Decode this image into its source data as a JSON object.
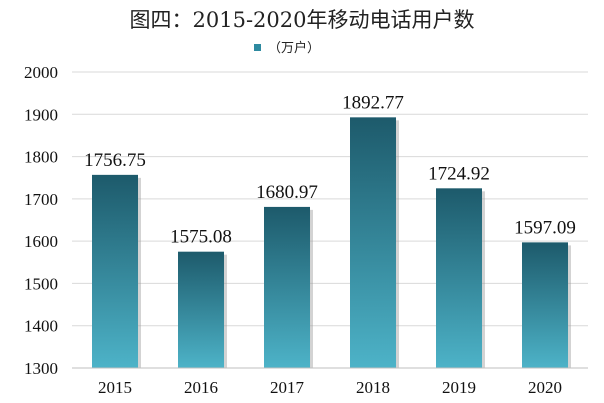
{
  "chart_data": {
    "type": "bar",
    "title": "图四：2015-2020年移动电话用户数",
    "categories": [
      "2015",
      "2016",
      "2017",
      "2018",
      "2019",
      "2020"
    ],
    "series": [
      {
        "name": "（万户）",
        "values": [
          1756.75,
          1575.08,
          1680.97,
          1892.77,
          1724.92,
          1597.09
        ]
      }
    ],
    "data_labels": [
      "1756.75",
      "1575.08",
      "1680.97",
      "1892.77",
      "1724.92",
      "1597.09"
    ],
    "y_ticks": [
      "1300",
      "1400",
      "1500",
      "1600",
      "1700",
      "1800",
      "1900",
      "2000"
    ],
    "ylim": [
      1300,
      2000
    ],
    "grid": true,
    "legend_position": "top-center",
    "colors": {
      "bar_top": "#1d5a6b",
      "bar_bottom": "#4db3c8",
      "legend_swatch": "#2e8aa0"
    }
  }
}
